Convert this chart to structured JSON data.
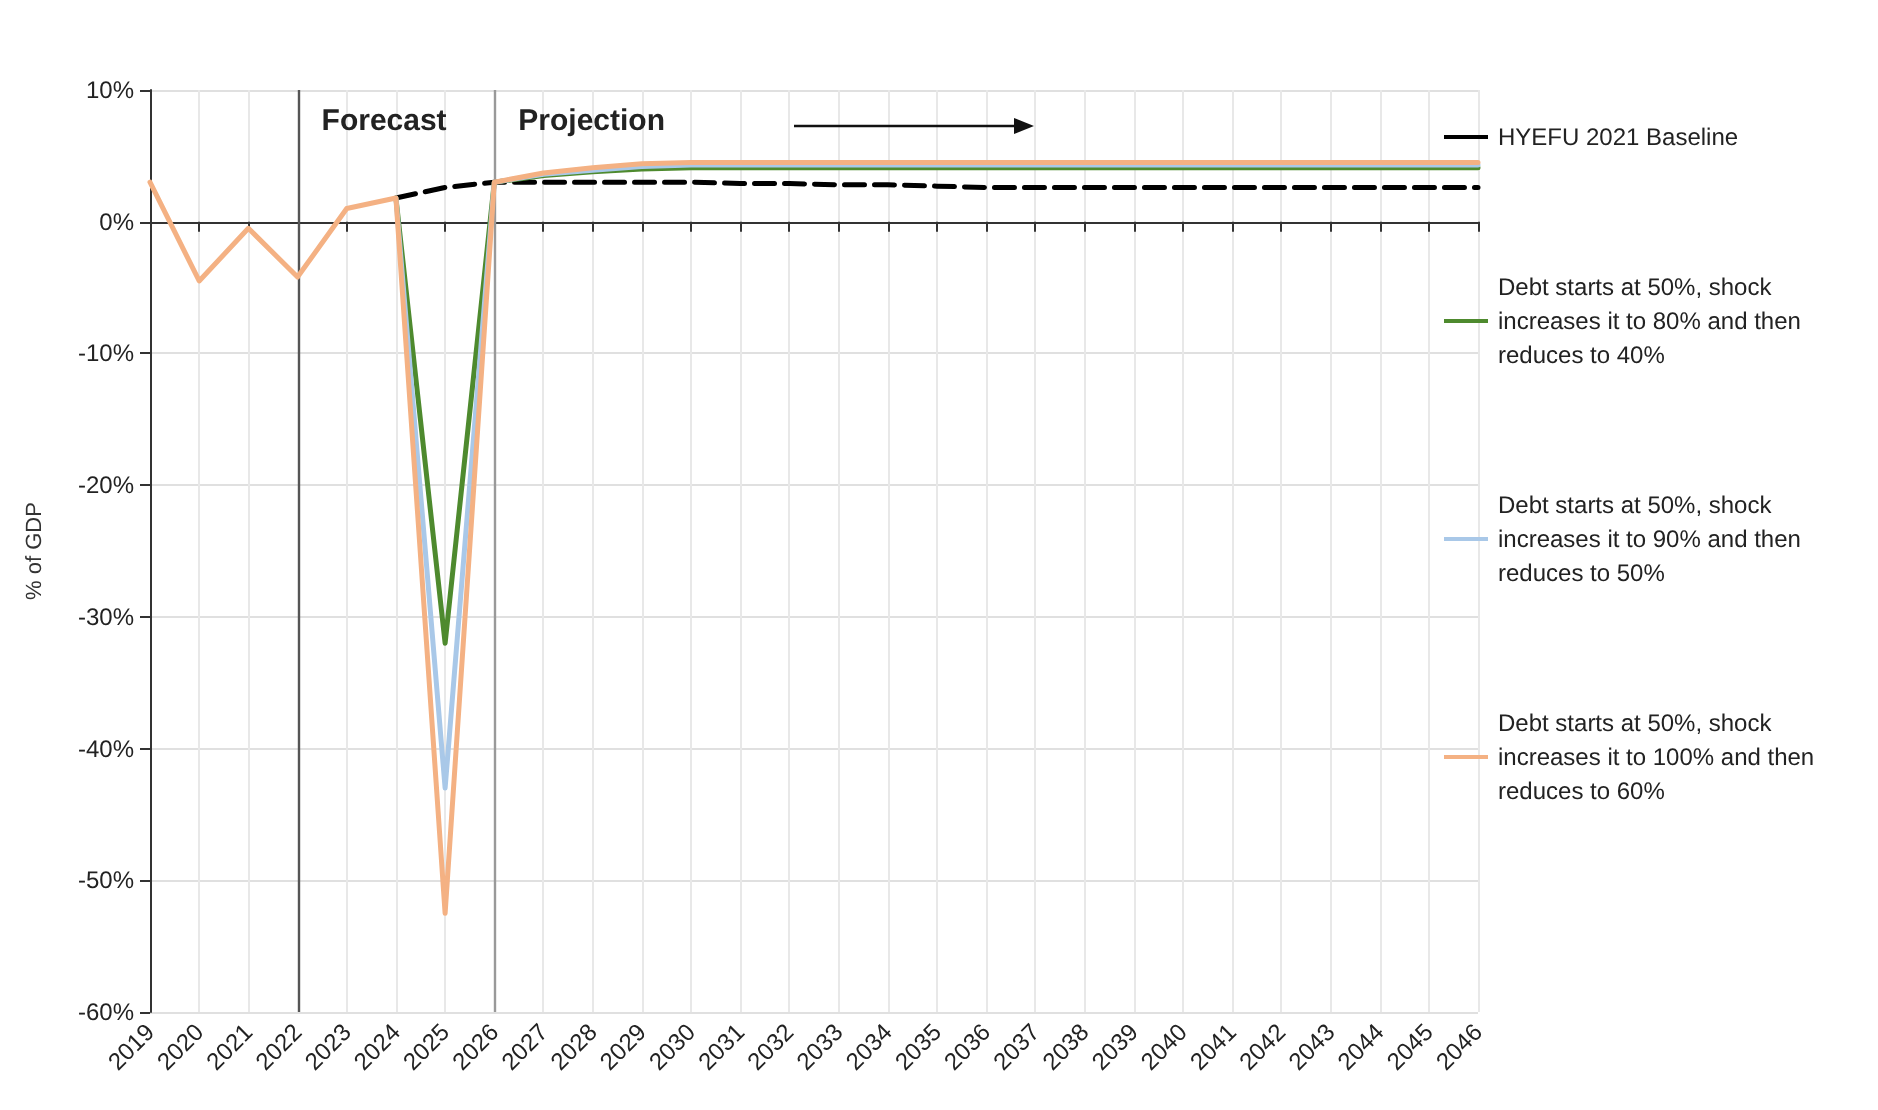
{
  "chart_data": {
    "type": "line",
    "categories": [
      "2019",
      "2020",
      "2021",
      "2022",
      "2023",
      "2024",
      "2025",
      "2026",
      "2027",
      "2028",
      "2029",
      "2030",
      "2031",
      "2032",
      "2033",
      "2034",
      "2035",
      "2036",
      "2037",
      "2038",
      "2039",
      "2040",
      "2041",
      "2042",
      "2043",
      "2044",
      "2045",
      "2046"
    ],
    "ylabel": "% of GDP",
    "ylim": [
      -60,
      10
    ],
    "yticks": [
      {
        "value": -60,
        "label": "-60%"
      },
      {
        "value": -50,
        "label": "-50%"
      },
      {
        "value": -40,
        "label": "-40%"
      },
      {
        "value": -30,
        "label": "-30%"
      },
      {
        "value": -20,
        "label": "-20%"
      },
      {
        "value": -10,
        "label": "-10%"
      },
      {
        "value": 0,
        "label": "0%"
      },
      {
        "value": 10,
        "label": "10%"
      }
    ],
    "series": [
      {
        "name": "HYEFU 2021 Baseline",
        "color": "#000000",
        "line_style": "dashed",
        "values": [
          null,
          null,
          null,
          null,
          null,
          1.8,
          2.6,
          3,
          3,
          3,
          3,
          3,
          2.9,
          2.9,
          2.8,
          2.8,
          2.7,
          2.6,
          2.6,
          2.6,
          2.6,
          2.6,
          2.6,
          2.6,
          2.6,
          2.6,
          2.6,
          2.6
        ]
      },
      {
        "name": "Debt starts at 50%, shock increases it to 80% and then reduces to 40%",
        "color": "#4e8a2e",
        "line_style": "solid",
        "values": [
          null,
          null,
          null,
          null,
          null,
          1.8,
          -32,
          3,
          3.5,
          3.8,
          4,
          4.1,
          4.1,
          4.1,
          4.1,
          4.1,
          4.1,
          4.1,
          4.1,
          4.1,
          4.1,
          4.1,
          4.1,
          4.1,
          4.1,
          4.1,
          4.1,
          4.1
        ]
      },
      {
        "name": "Debt starts at 50%, shock increases it to 90% and then reduces to 50%",
        "color": "#a9c8e8",
        "line_style": "solid",
        "values": [
          null,
          null,
          null,
          null,
          null,
          1.8,
          -43,
          3,
          3.6,
          3.9,
          4.2,
          4.3,
          4.3,
          4.3,
          4.3,
          4.3,
          4.3,
          4.3,
          4.3,
          4.3,
          4.3,
          4.3,
          4.3,
          4.3,
          4.3,
          4.3,
          4.3,
          4.3
        ]
      },
      {
        "name": "Debt starts at 50%, shock increases it to 100% and then reduces to 60%",
        "color": "#f4b183",
        "line_style": "solid",
        "values": [
          3,
          -4.5,
          -0.5,
          -4.2,
          1,
          1.8,
          -52.5,
          3,
          3.7,
          4.1,
          4.4,
          4.5,
          4.5,
          4.5,
          4.5,
          4.5,
          4.5,
          4.5,
          4.5,
          4.5,
          4.5,
          4.5,
          4.5,
          4.5,
          4.5,
          4.5,
          4.5,
          4.5
        ]
      }
    ],
    "ref_lines": [
      {
        "axis": "x",
        "value": "2022",
        "label": "Forecast",
        "color": "#555555"
      },
      {
        "axis": "x",
        "value": "2026",
        "label": "Projection",
        "color": "#999999"
      }
    ],
    "grid": true,
    "legend": "right",
    "marker": "none"
  }
}
